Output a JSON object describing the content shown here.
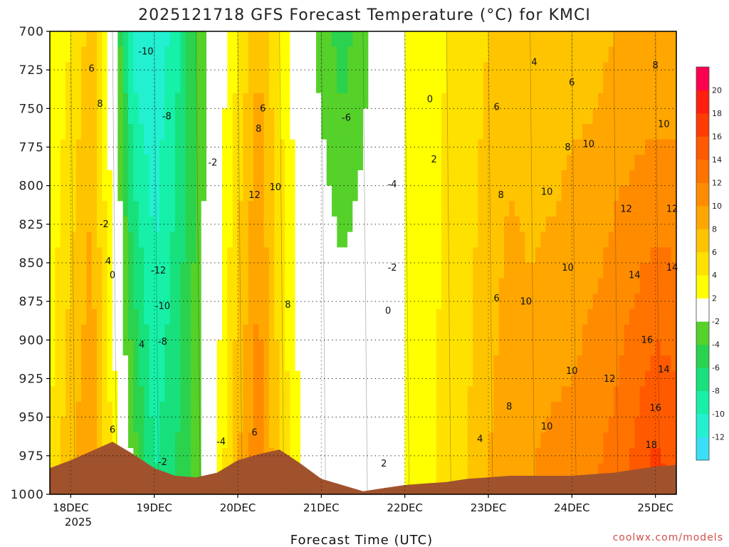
{
  "chart_data": {
    "type": "heatmap",
    "title": "2025121718 GFS Forecast Temperature (°C) for KMCI",
    "xlabel": "Forecast Time (UTC)",
    "credit": "coolwx.com/models",
    "x_ticks": [
      "18DEC",
      "19DEC",
      "20DEC",
      "21DEC",
      "22DEC",
      "23DEC",
      "24DEC",
      "25DEC"
    ],
    "x_year": "2025",
    "x_range": [
      -0.25,
      7.25
    ],
    "y_ticks": [
      700,
      725,
      750,
      775,
      800,
      825,
      850,
      875,
      900,
      925,
      950,
      975,
      1000
    ],
    "y_range": [
      700,
      1000
    ],
    "y_unit": "hPa",
    "colorbar": {
      "levels": [
        -14,
        -12,
        -10,
        -8,
        -6,
        -4,
        -2,
        2,
        4,
        6,
        8,
        10,
        12,
        14,
        16,
        18,
        20,
        22
      ],
      "labels": [
        "-12",
        "-10",
        "-8",
        "-6",
        "-4",
        "-2",
        "2",
        "4",
        "6",
        "8",
        "10",
        "12",
        "14",
        "16",
        "18",
        "20"
      ],
      "colors": [
        "#39e0f5",
        "#23f0d0",
        "#17f0a8",
        "#18e07c",
        "#2ad24e",
        "#55d12a",
        "#ffffff",
        "#ffff00",
        "#ffe100",
        "#ffc400",
        "#ffa600",
        "#ff8c00",
        "#ff7300",
        "#ff5a00",
        "#ff3c00",
        "#ff1e10",
        "#ff0050"
      ]
    },
    "columns": [
      {
        "x": -0.25,
        "v700": 2,
        "v1000": 4
      },
      {
        "x": 0.0,
        "v700": 4,
        "v1000": 8
      },
      {
        "x": 0.25,
        "v700": 7,
        "v1000": 10
      },
      {
        "x": 0.5,
        "v700": 0,
        "v1000": 4
      },
      {
        "x": 0.75,
        "v700": -11,
        "v1000": -2
      },
      {
        "x": 1.0,
        "v700": -12,
        "v1000": -8
      },
      {
        "x": 1.25,
        "v700": -9,
        "v1000": -6
      },
      {
        "x": 1.5,
        "v700": -4,
        "v1000": -3
      },
      {
        "x": 1.75,
        "v700": 0,
        "v1000": 2
      },
      {
        "x": 2.0,
        "v700": 4,
        "v1000": 8
      },
      {
        "x": 2.25,
        "v700": 8,
        "v1000": 12
      },
      {
        "x": 2.5,
        "v700": 4,
        "v1000": 6
      },
      {
        "x": 2.75,
        "v700": 0,
        "v1000": 2
      },
      {
        "x": 3.0,
        "v700": -3,
        "v1000": 2
      },
      {
        "x": 3.25,
        "v700": -5,
        "v1000": 1
      },
      {
        "x": 3.5,
        "v700": -3,
        "v1000": 1
      },
      {
        "x": 3.75,
        "v700": 0,
        "v1000": 2
      },
      {
        "x": 4.0,
        "v700": 2,
        "v1000": 2
      },
      {
        "x": 4.25,
        "v700": 3,
        "v1000": 3
      },
      {
        "x": 4.5,
        "v700": 4,
        "v1000": 5
      },
      {
        "x": 4.75,
        "v700": 5,
        "v1000": 6
      },
      {
        "x": 5.0,
        "v700": 6,
        "v1000": 8
      },
      {
        "x": 5.25,
        "v700": 7,
        "v1000": 10
      },
      {
        "x": 5.5,
        "v700": 6,
        "v1000": 10
      },
      {
        "x": 5.75,
        "v700": 6,
        "v1000": 11
      },
      {
        "x": 6.0,
        "v700": 7,
        "v1000": 11
      },
      {
        "x": 6.25,
        "v700": 7,
        "v1000": 12
      },
      {
        "x": 6.5,
        "v700": 8,
        "v1000": 13
      },
      {
        "x": 6.75,
        "v700": 8,
        "v1000": 15
      },
      {
        "x": 7.0,
        "v700": 8,
        "v1000": 17
      },
      {
        "x": 7.25,
        "v700": 8,
        "v1000": 16
      }
    ],
    "terrain": [
      {
        "x": -0.25,
        "p": 983
      },
      {
        "x": 0.0,
        "p": 978
      },
      {
        "x": 0.25,
        "p": 972
      },
      {
        "x": 0.5,
        "p": 966
      },
      {
        "x": 0.75,
        "p": 974
      },
      {
        "x": 1.0,
        "p": 983
      },
      {
        "x": 1.25,
        "p": 988
      },
      {
        "x": 1.5,
        "p": 989
      },
      {
        "x": 1.75,
        "p": 986
      },
      {
        "x": 2.0,
        "p": 978
      },
      {
        "x": 2.25,
        "p": 974
      },
      {
        "x": 2.5,
        "p": 971
      },
      {
        "x": 2.75,
        "p": 980
      },
      {
        "x": 3.0,
        "p": 990
      },
      {
        "x": 3.25,
        "p": 994
      },
      {
        "x": 3.5,
        "p": 998
      },
      {
        "x": 3.75,
        "p": 996
      },
      {
        "x": 4.0,
        "p": 994
      },
      {
        "x": 4.25,
        "p": 993
      },
      {
        "x": 4.5,
        "p": 992
      },
      {
        "x": 4.75,
        "p": 990
      },
      {
        "x": 5.0,
        "p": 989
      },
      {
        "x": 5.25,
        "p": 988
      },
      {
        "x": 5.5,
        "p": 988
      },
      {
        "x": 5.75,
        "p": 988
      },
      {
        "x": 6.0,
        "p": 988
      },
      {
        "x": 6.25,
        "p": 987
      },
      {
        "x": 6.5,
        "p": 986
      },
      {
        "x": 6.75,
        "p": 984
      },
      {
        "x": 7.0,
        "p": 982
      },
      {
        "x": 7.25,
        "p": 981
      }
    ],
    "contour_labels": [
      {
        "text": "-10",
        "x": 0.9,
        "p": 715
      },
      {
        "text": "-8",
        "x": 1.15,
        "p": 757
      },
      {
        "text": "-2",
        "x": 1.7,
        "p": 787
      },
      {
        "text": "-2",
        "x": 0.4,
        "p": 827
      },
      {
        "text": "-12",
        "x": 1.05,
        "p": 857
      },
      {
        "text": "-10",
        "x": 1.1,
        "p": 880
      },
      {
        "text": "-8",
        "x": 1.1,
        "p": 903
      },
      {
        "text": "-4",
        "x": 1.8,
        "p": 968
      },
      {
        "text": "-2",
        "x": 1.1,
        "p": 981
      },
      {
        "text": "6",
        "x": 0.25,
        "p": 726
      },
      {
        "text": "8",
        "x": 0.35,
        "p": 749
      },
      {
        "text": "4",
        "x": 0.45,
        "p": 851
      },
      {
        "text": "0",
        "x": 0.5,
        "p": 860
      },
      {
        "text": "4",
        "x": 0.85,
        "p": 905
      },
      {
        "text": "6",
        "x": 0.5,
        "p": 960
      },
      {
        "text": "6",
        "x": 2.3,
        "p": 752
      },
      {
        "text": "8",
        "x": 2.25,
        "p": 765
      },
      {
        "text": "10",
        "x": 2.45,
        "p": 803
      },
      {
        "text": "12",
        "x": 2.2,
        "p": 808
      },
      {
        "text": "8",
        "x": 2.6,
        "p": 879
      },
      {
        "text": "6",
        "x": 2.2,
        "p": 962
      },
      {
        "text": "-6",
        "x": 3.3,
        "p": 758
      },
      {
        "text": "-4",
        "x": 3.85,
        "p": 801
      },
      {
        "text": "-2",
        "x": 3.85,
        "p": 855
      },
      {
        "text": "0",
        "x": 3.8,
        "p": 883
      },
      {
        "text": "0",
        "x": 4.3,
        "p": 746
      },
      {
        "text": "2",
        "x": 4.35,
        "p": 785
      },
      {
        "text": "2",
        "x": 3.75,
        "p": 982
      },
      {
        "text": "4",
        "x": 4.9,
        "p": 966
      },
      {
        "text": "4",
        "x": 5.55,
        "p": 722
      },
      {
        "text": "6",
        "x": 6.0,
        "p": 735
      },
      {
        "text": "8",
        "x": 7.0,
        "p": 724
      },
      {
        "text": "6",
        "x": 5.1,
        "p": 751
      },
      {
        "text": "10",
        "x": 7.1,
        "p": 762
      },
      {
        "text": "8",
        "x": 5.95,
        "p": 777
      },
      {
        "text": "10",
        "x": 6.2,
        "p": 775
      },
      {
        "text": "8",
        "x": 5.15,
        "p": 808
      },
      {
        "text": "10",
        "x": 5.7,
        "p": 806
      },
      {
        "text": "12",
        "x": 6.65,
        "p": 817
      },
      {
        "text": "12",
        "x": 7.2,
        "p": 817
      },
      {
        "text": "10",
        "x": 5.95,
        "p": 855
      },
      {
        "text": "14",
        "x": 6.75,
        "p": 860
      },
      {
        "text": "14",
        "x": 7.2,
        "p": 855
      },
      {
        "text": "6",
        "x": 5.1,
        "p": 875
      },
      {
        "text": "10",
        "x": 5.45,
        "p": 877
      },
      {
        "text": "16",
        "x": 6.9,
        "p": 902
      },
      {
        "text": "10",
        "x": 6.0,
        "p": 922
      },
      {
        "text": "12",
        "x": 6.45,
        "p": 927
      },
      {
        "text": "14",
        "x": 7.1,
        "p": 921
      },
      {
        "text": "8",
        "x": 5.25,
        "p": 945
      },
      {
        "text": "16",
        "x": 7.0,
        "p": 946
      },
      {
        "text": "10",
        "x": 5.7,
        "p": 958
      },
      {
        "text": "18",
        "x": 6.95,
        "p": 970
      }
    ]
  }
}
